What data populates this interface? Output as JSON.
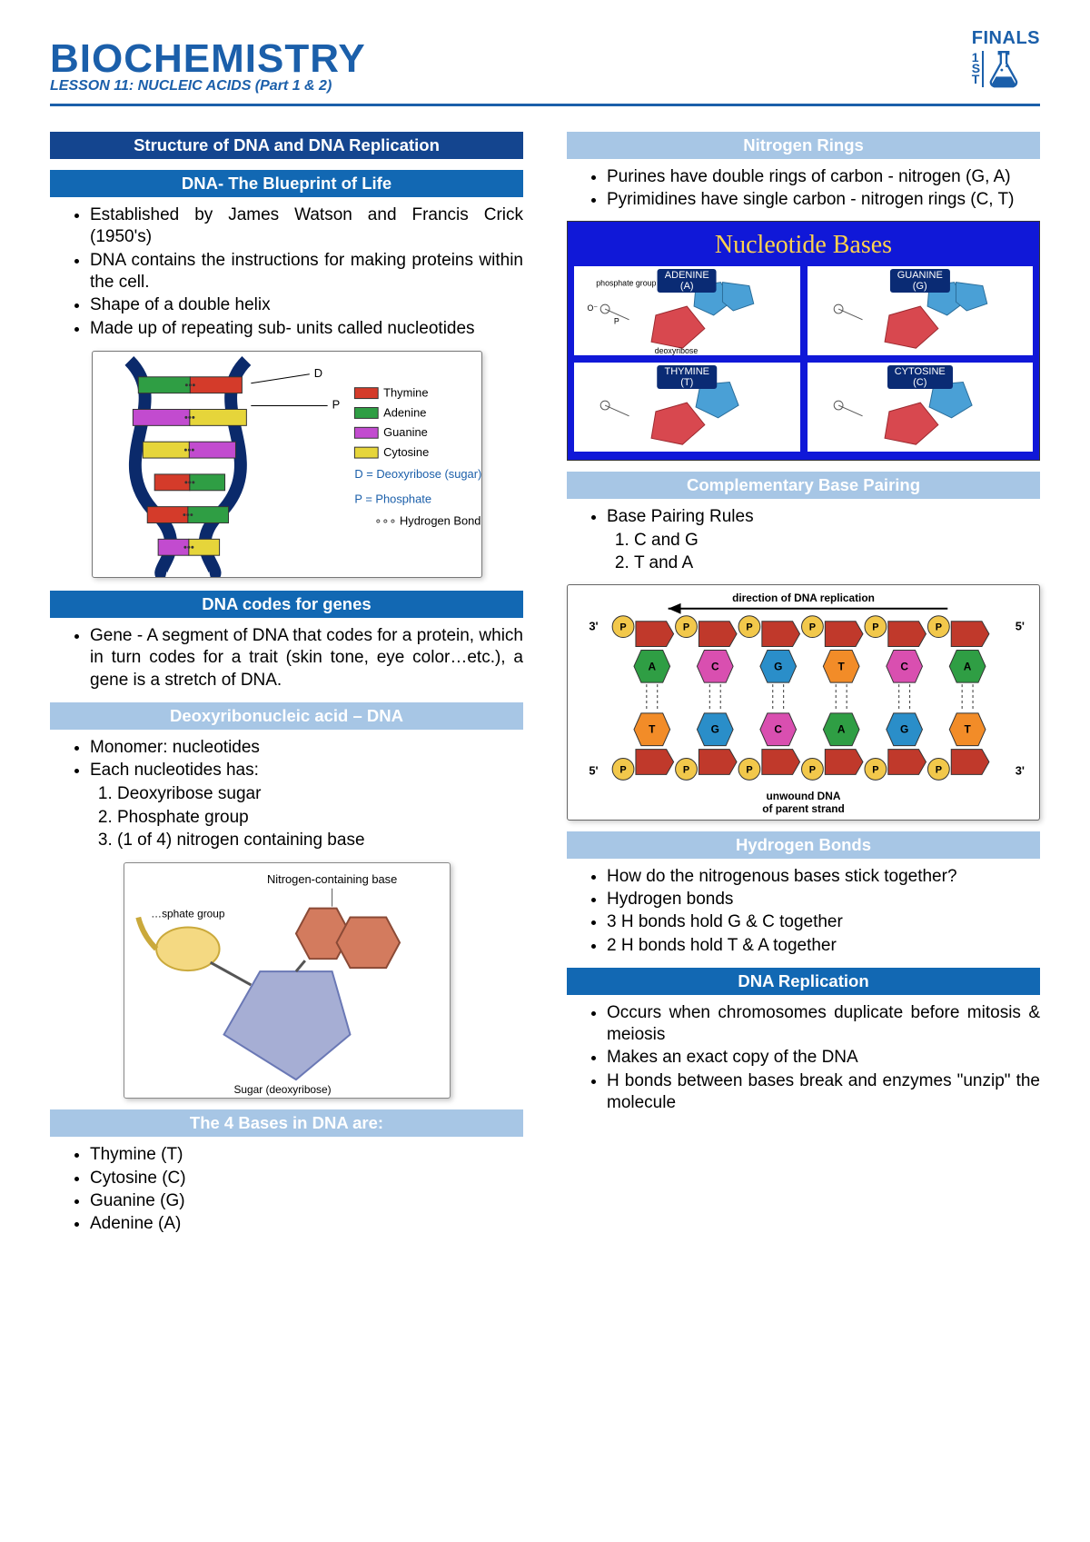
{
  "header": {
    "title": "BIOCHEMISTRY",
    "subtitle": "LESSON 11: NUCLEIC ACIDS (Part 1 & 2)",
    "badge_top": "FINALS",
    "badge_side": [
      "1",
      "S",
      "T"
    ]
  },
  "colors": {
    "brand": "#1b5faa",
    "heading_dark": "#14458f",
    "heading_mid": "#1268b3",
    "heading_light": "#a7c6e5",
    "blue_panel": "#1018d8",
    "blue_panel_title": "#ffd24d"
  },
  "left": {
    "h1": "Structure of DNA and DNA Replication",
    "h2": "DNA- The Blueprint of Life",
    "blueprint_bullets": [
      "Established by James Watson and Francis Crick (1950's)",
      "DNA contains the instructions for making proteins within the cell.",
      "Shape of a double helix",
      "Made up of repeating sub- units called nucleotides"
    ],
    "helix_legend": {
      "thymine": {
        "label": "Thymine",
        "color": "#d43b2a"
      },
      "adenine": {
        "label": "Adenine",
        "color": "#2f9e44"
      },
      "guanine": {
        "label": "Guanine",
        "color": "#c24bcf"
      },
      "cytosine": {
        "label": "Cytosine",
        "color": "#e6d53a"
      },
      "deoxy": {
        "label": "D = Deoxyribose (sugar)",
        "color": "#1b5faa"
      },
      "phos": {
        "label": "P = Phosphate",
        "color": "#1b5faa"
      },
      "hbond": {
        "label": "Hydrogen Bond"
      },
      "d_label": "D",
      "p_label": "P"
    },
    "h3": "DNA codes for genes",
    "genes_bullets": [
      "Gene - A segment of DNA that codes for a protein, which in turn codes for a trait (skin tone, eye color…etc.), a gene is a stretch of DNA."
    ],
    "h4": "Deoxyribonucleic acid – DNA",
    "dna_bullets": [
      "Monomer: nucleotides",
      "Each nucleotides has:"
    ],
    "dna_numbered": [
      "Deoxyribose sugar",
      "Phosphate group",
      "(1 of 4) nitrogen containing base"
    ],
    "nucleotide_labels": {
      "base": "Nitrogen-containing base",
      "phosphate": "…sphate group",
      "sugar": "Sugar (deoxyribose)"
    },
    "h5": "The 4 Bases in DNA are:",
    "bases_bullets": [
      "Thymine (T)",
      "Cytosine (C)",
      "Guanine (G)",
      "Adenine (A)"
    ]
  },
  "right": {
    "h1": "Nitrogen Rings",
    "rings_bullets": [
      "Purines have double rings of carbon - nitrogen (G, A)",
      "Pyrimidines have single carbon - nitrogen rings (C, T)"
    ],
    "panel_title": "Nucleotide Bases",
    "cells": [
      {
        "label_top": "ADENINE",
        "label_bot": "(A)",
        "phos_label": "phosphate group",
        "sugar_label": "deoxyribose"
      },
      {
        "label_top": "GUANINE",
        "label_bot": "(G)"
      },
      {
        "label_top": "THYMINE",
        "label_bot": "(T)"
      },
      {
        "label_top": "CYTOSINE",
        "label_bot": "(C)"
      }
    ],
    "h2": "Complementary Base Pairing",
    "pairing_bullet": "Base Pairing Rules",
    "pairing_list": [
      "C and G",
      "T and A"
    ],
    "repfig": {
      "top_label": "direction of DNA replication",
      "bottom_label1": "unwound DNA",
      "bottom_label2": "of parent strand",
      "l3": "3'",
      "l5": "5'",
      "bases": {
        "A": {
          "color": "#2f9e44"
        },
        "T": {
          "color": "#f28c28"
        },
        "G": {
          "color": "#2a8ec9"
        },
        "C": {
          "color": "#d94fb0"
        },
        "P": {
          "color": "#f2c84b"
        },
        "backbone": {
          "color": "#c0392b"
        }
      },
      "top_seq": [
        "A",
        "C",
        "G",
        "T",
        "C",
        "A"
      ],
      "bot_seq": [
        "T",
        "G",
        "C",
        "A",
        "G",
        "T"
      ]
    },
    "h3": "Hydrogen Bonds",
    "hbond_bullets": [
      "How do the nitrogenous bases stick together?",
      "Hydrogen bonds",
      "3 H bonds hold G & C together",
      "2 H bonds hold T & A together"
    ],
    "h4": "DNA Replication",
    "repl_bullets": [
      "Occurs when chromosomes duplicate before mitosis & meiosis",
      "Makes an exact copy of the DNA",
      "H bonds between bases break and enzymes \"unzip\" the molecule"
    ]
  }
}
